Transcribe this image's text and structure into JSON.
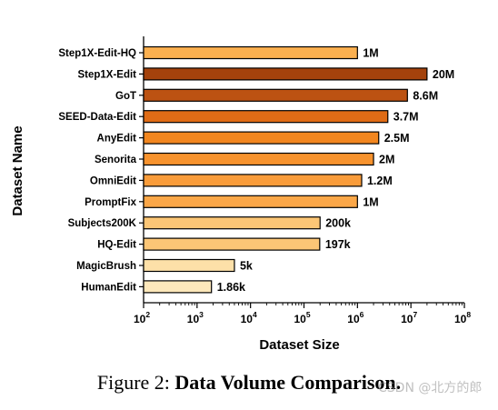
{
  "chart_data": {
    "type": "bar",
    "orientation": "horizontal",
    "xscale": "log",
    "xlim": [
      100,
      100000000
    ],
    "xlabel": "Dataset Size",
    "ylabel": "Dataset Name",
    "xticks": [
      "10^2",
      "10^3",
      "10^4",
      "10^5",
      "10^6",
      "10^7",
      "10^8"
    ],
    "categories": [
      "Step1X-Edit-HQ",
      "Step1X-Edit",
      "GoT",
      "SEED-Data-Edit",
      "AnyEdit",
      "Senorita",
      "OmniEdit",
      "PromptFix",
      "Subjects200K",
      "HQ-Edit",
      "MagicBrush",
      "HumanEdit"
    ],
    "values": [
      1000000,
      20000000,
      8600000,
      3700000,
      2500000,
      2000000,
      1200000,
      1000000,
      200000,
      197000,
      5000,
      1860
    ],
    "labels": [
      "1M",
      "20M",
      "8.6M",
      "3.7M",
      "2.5M",
      "2M",
      "1.2M",
      "1M",
      "200k",
      "197k",
      "5k",
      "1.86k"
    ],
    "colors": [
      "#fbb050",
      "#a4420c",
      "#bc5212",
      "#e06c16",
      "#f2861f",
      "#f7932e",
      "#f99c3a",
      "#fba748",
      "#fcc676",
      "#fcc676",
      "#fde0a8",
      "#fee8bb"
    ],
    "grid": false,
    "legend": "none"
  },
  "caption": {
    "prefix": "Figure 2:",
    "title": "Data Volume Comparison."
  },
  "watermark": "CSDN @北方的郎"
}
